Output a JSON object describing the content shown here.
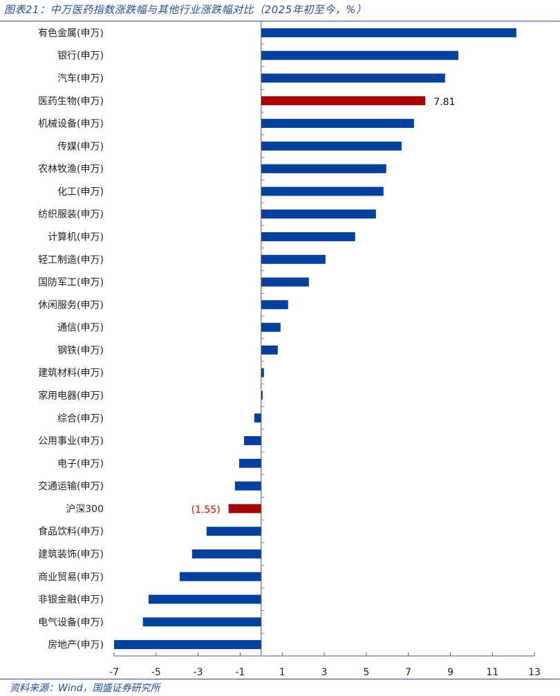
{
  "title": "图表21：中万医药指数涨跌幅与其他行业涨跌幅对比（2025年初至今，%）",
  "source": "资料来源：Wind，国盛证券研究所",
  "chart_data": {
    "type": "bar",
    "orientation": "horizontal",
    "title": "图表21：中万医药指数涨跌幅与其他行业涨跌幅对比（2025年初至今，%）",
    "xlim": [
      -7,
      13
    ],
    "xticks": [
      "-7",
      "-5",
      "-3",
      "-1",
      "1",
      "3",
      "5",
      "7",
      "9",
      "11",
      "13"
    ],
    "grid": false,
    "colors": {
      "default": "#0040a0",
      "highlight": "#a80000"
    },
    "categories": [
      "有色金属(申万)",
      "银行(申万)",
      "汽车(申万)",
      "医药生物(申万)",
      "机械设备(申万)",
      "传媒(申万)",
      "农林牧渔(申万)",
      "化工(申万)",
      "纺织服装(申万)",
      "计算机(申万)",
      "轻工制造(申万)",
      "国防军工(申万)",
      "休闲服务(申万)",
      "通信(申万)",
      "钢铁(申万)",
      "建筑材料(申万)",
      "家用电器(申万)",
      "综合(申万)",
      "公用事业(申万)",
      "电子(申万)",
      "交通运输(申万)",
      "沪深300",
      "食品饮料(申万)",
      "建筑装饰(申万)",
      "商业贸易(申万)",
      "非银金融(申万)",
      "电气设备(申万)",
      "房地产(申万)"
    ],
    "values": [
      12.14,
      9.38,
      8.75,
      7.81,
      7.27,
      6.68,
      5.95,
      5.82,
      5.46,
      4.47,
      3.06,
      2.27,
      1.28,
      0.92,
      0.79,
      0.13,
      0.07,
      -0.33,
      -0.82,
      -1.05,
      -1.25,
      -1.55,
      -2.6,
      -3.29,
      -3.88,
      -5.36,
      -5.63,
      -7.0
    ],
    "highlighted": [
      "医药生物(申万)",
      "沪深300"
    ],
    "data_labels": [
      {
        "category": "医药生物(申万)",
        "text": "7.81",
        "color": "#111111"
      },
      {
        "category": "沪深300",
        "text": "(1.55)",
        "color": "#e00000"
      }
    ]
  }
}
